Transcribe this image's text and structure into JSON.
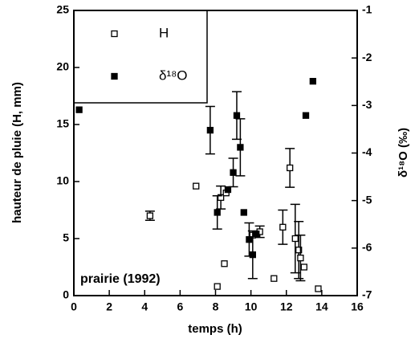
{
  "chart_data": {
    "type": "scatter",
    "xlabel": "temps (h)",
    "ylabel": "hauteur de pluie (H, mm)",
    "y2label": "δ¹⁸O (‰)",
    "annotation": "prairie (1992)",
    "xlim": [
      0,
      16
    ],
    "xticks": [
      0,
      2,
      4,
      6,
      8,
      10,
      12,
      14,
      16
    ],
    "ylim": [
      0,
      25
    ],
    "yticks": [
      0,
      5,
      10,
      15,
      20,
      25
    ],
    "y2lim": [
      -7,
      -1
    ],
    "y2ticks": [
      -7,
      -6,
      -5,
      -4,
      -3,
      -2,
      -1
    ],
    "series": [
      {
        "name": "H",
        "color": "#000000",
        "marker": "open",
        "x": [
          4.3,
          6.9,
          8.1,
          8.3,
          8.5,
          8.6,
          10.1,
          10.5,
          11.3,
          11.8,
          12.2,
          12.5,
          12.7,
          12.8,
          13.0,
          13.8
        ],
        "values": [
          7.0,
          9.6,
          0.8,
          8.6,
          2.8,
          9.0,
          5.3,
          5.6,
          1.5,
          6.0,
          11.2,
          5.0,
          4.0,
          3.3,
          2.5,
          0.6
        ],
        "errors": [
          0.4,
          null,
          null,
          1.0,
          null,
          null,
          null,
          0.5,
          null,
          1.5,
          1.7,
          3.0,
          2.5,
          2.0,
          null,
          null
        ]
      },
      {
        "name": "δ¹⁸O",
        "color": "#000000",
        "marker": "filled",
        "axis": "y2",
        "x": [
          0.3,
          7.7,
          8.1,
          8.7,
          9.0,
          9.2,
          9.4,
          9.6,
          9.9,
          10.1,
          10.3,
          13.1,
          13.5
        ],
        "values": [
          -3.09,
          -3.52,
          -5.25,
          -4.77,
          -4.41,
          -3.21,
          -3.88,
          -5.25,
          -5.82,
          -6.14,
          -5.7,
          -3.21,
          -2.49
        ],
        "errors": [
          null,
          0.5,
          0.35,
          null,
          0.3,
          0.5,
          0.6,
          null,
          0.35,
          0.5,
          null,
          null,
          null
        ]
      }
    ]
  }
}
